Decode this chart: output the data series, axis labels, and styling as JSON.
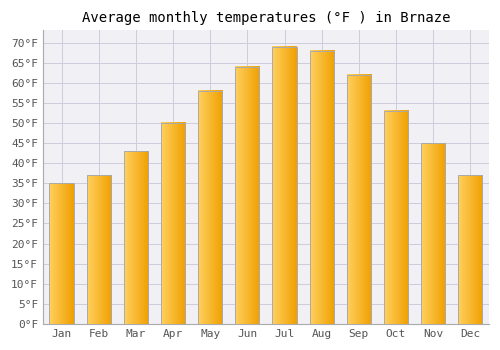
{
  "title": "Average monthly temperatures (°F ) in Brnaze",
  "months": [
    "Jan",
    "Feb",
    "Mar",
    "Apr",
    "May",
    "Jun",
    "Jul",
    "Aug",
    "Sep",
    "Oct",
    "Nov",
    "Dec"
  ],
  "values": [
    35,
    37,
    43,
    50,
    58,
    64,
    69,
    68,
    62,
    53,
    45,
    37
  ],
  "bar_color_left": "#FFD060",
  "bar_color_right": "#F0A000",
  "bar_edge_color": "#AAAAAA",
  "ylim": [
    0,
    73
  ],
  "yticks": [
    0,
    5,
    10,
    15,
    20,
    25,
    30,
    35,
    40,
    45,
    50,
    55,
    60,
    65,
    70
  ],
  "ytick_labels": [
    "0°F",
    "5°F",
    "10°F",
    "15°F",
    "20°F",
    "25°F",
    "30°F",
    "35°F",
    "40°F",
    "45°F",
    "50°F",
    "55°F",
    "60°F",
    "65°F",
    "70°F"
  ],
  "background_color": "#FFFFFF",
  "plot_bg_color": "#F0F0F5",
  "grid_color": "#CCCCDD",
  "title_fontsize": 10,
  "tick_fontsize": 8,
  "title_font": "monospace"
}
